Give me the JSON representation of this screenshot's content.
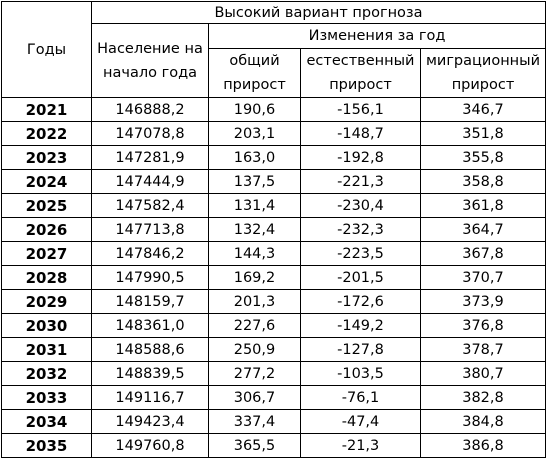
{
  "headers": {
    "years": "Годы",
    "scenario": "Высокий вариант прогноза",
    "population_line1": "Население на",
    "population_line2": "начало года",
    "changes": "Изменения за год",
    "total_line1": "общий",
    "total_line2": "прирост",
    "natural_line1": "естественный",
    "natural_line2": "прирост",
    "migration_line1": "миграционный",
    "migration_line2": "прирост"
  },
  "rows": [
    {
      "year": "2021",
      "population": "146888,2",
      "total": "190,6",
      "natural": "-156,1",
      "migration": "346,7"
    },
    {
      "year": "2022",
      "population": "147078,8",
      "total": "203,1",
      "natural": "-148,7",
      "migration": "351,8"
    },
    {
      "year": "2023",
      "population": "147281,9",
      "total": "163,0",
      "natural": "-192,8",
      "migration": "355,8"
    },
    {
      "year": "2024",
      "population": "147444,9",
      "total": "137,5",
      "natural": "-221,3",
      "migration": "358,8"
    },
    {
      "year": "2025",
      "population": "147582,4",
      "total": "131,4",
      "natural": "-230,4",
      "migration": "361,8"
    },
    {
      "year": "2026",
      "population": "147713,8",
      "total": "132,4",
      "natural": "-232,3",
      "migration": "364,7"
    },
    {
      "year": "2027",
      "population": "147846,2",
      "total": "144,3",
      "natural": "-223,5",
      "migration": "367,8"
    },
    {
      "year": "2028",
      "population": "147990,5",
      "total": "169,2",
      "natural": "-201,5",
      "migration": "370,7"
    },
    {
      "year": "2029",
      "population": "148159,7",
      "total": "201,3",
      "natural": "-172,6",
      "migration": "373,9"
    },
    {
      "year": "2030",
      "population": "148361,0",
      "total": "227,6",
      "natural": "-149,2",
      "migration": "376,8"
    },
    {
      "year": "2031",
      "population": "148588,6",
      "total": "250,9",
      "natural": "-127,8",
      "migration": "378,7"
    },
    {
      "year": "2032",
      "population": "148839,5",
      "total": "277,2",
      "natural": "-103,5",
      "migration": "380,7"
    },
    {
      "year": "2033",
      "population": "149116,7",
      "total": "306,7",
      "natural": "-76,1",
      "migration": "382,8"
    },
    {
      "year": "2034",
      "population": "149423,4",
      "total": "337,4",
      "natural": "-47,4",
      "migration": "384,8"
    },
    {
      "year": "2035",
      "population": "149760,8",
      "total": "365,5",
      "natural": "-21,3",
      "migration": "386,8"
    }
  ]
}
